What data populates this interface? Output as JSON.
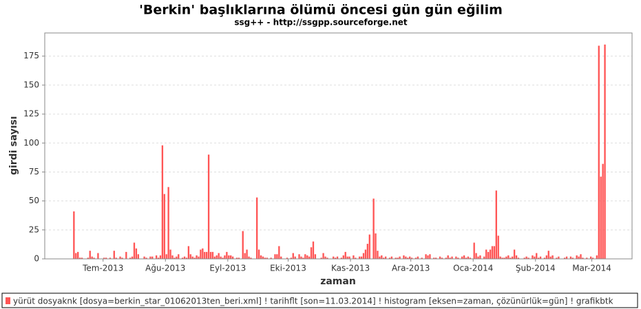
{
  "chart_data": {
    "type": "bar",
    "title": "'Berkin' başlıklarına ölümü öncesi gün gün eğilim",
    "subtitle": "ssg++ - http://ssgpp.sourceforge.net",
    "x_label": "zaman",
    "y_label": "girdi sayısı",
    "categories": [
      null,
      null,
      null,
      null,
      null,
      null,
      null,
      null,
      null,
      null,
      null,
      null,
      null,
      null,
      null,
      null,
      null,
      null,
      null,
      null,
      null,
      null,
      null,
      null,
      null,
      null,
      null,
      null,
      null,
      "Tem-2013",
      null,
      null,
      null,
      null,
      null,
      null,
      null,
      null,
      null,
      null,
      null,
      null,
      null,
      null,
      null,
      null,
      null,
      null,
      null,
      null,
      null,
      null,
      null,
      null,
      null,
      null,
      null,
      null,
      null,
      null,
      "Ağu-2013",
      null,
      null,
      null,
      null,
      null,
      null,
      null,
      null,
      null,
      null,
      null,
      null,
      null,
      null,
      null,
      null,
      null,
      null,
      null,
      null,
      null,
      null,
      null,
      null,
      null,
      null,
      null,
      null,
      null,
      null,
      "Eyl-2013",
      null,
      null,
      null,
      null,
      null,
      null,
      null,
      null,
      null,
      null,
      null,
      null,
      null,
      null,
      null,
      null,
      null,
      null,
      null,
      null,
      null,
      null,
      null,
      null,
      null,
      null,
      null,
      null,
      null,
      "Eki-2013",
      null,
      null,
      null,
      null,
      null,
      null,
      null,
      null,
      null,
      null,
      null,
      null,
      null,
      null,
      null,
      null,
      null,
      null,
      null,
      null,
      null,
      null,
      null,
      null,
      null,
      null,
      null,
      null,
      null,
      null,
      "Kas-2013",
      null,
      null,
      null,
      null,
      null,
      null,
      null,
      null,
      null,
      null,
      null,
      null,
      null,
      null,
      null,
      null,
      null,
      null,
      null,
      null,
      null,
      null,
      null,
      null,
      null,
      null,
      null,
      null,
      null,
      "Ara-2013",
      null,
      null,
      null,
      null,
      null,
      null,
      null,
      null,
      null,
      null,
      null,
      null,
      null,
      null,
      null,
      null,
      null,
      null,
      null,
      null,
      null,
      null,
      null,
      null,
      null,
      null,
      null,
      null,
      null,
      null,
      "Oca-2014",
      null,
      null,
      null,
      null,
      null,
      null,
      null,
      null,
      null,
      null,
      null,
      null,
      null,
      null,
      null,
      null,
      null,
      null,
      null,
      null,
      null,
      null,
      null,
      null,
      null,
      null,
      null,
      null,
      null,
      null,
      "Şub-2014",
      null,
      null,
      null,
      null,
      null,
      null,
      null,
      null,
      null,
      null,
      null,
      null,
      null,
      null,
      null,
      null,
      null,
      null,
      null,
      null,
      null,
      null,
      null,
      null,
      null,
      null,
      null,
      "Mar-2014",
      null,
      null,
      null,
      null,
      null,
      null,
      null,
      null,
      null,
      null,
      null,
      null,
      null,
      null,
      null,
      null,
      null,
      null,
      null
    ],
    "series": [
      {
        "name": "yürüt dosyaknk [dosya=berkin_star_01062013ten_beri.xml] ! tarihflt [son=11.03.2014] ! histogram [eksen=zaman, çözünürlük=gün] ! grafikbtk",
        "color": "#ff5555",
        "values": [
          0,
          0,
          0,
          0,
          0,
          0,
          0,
          0,
          0,
          0,
          0,
          0,
          0,
          0,
          41,
          5,
          6,
          1,
          1,
          0,
          0,
          1,
          7,
          2,
          1,
          0,
          5,
          0,
          0,
          1,
          1,
          0,
          1,
          0,
          7,
          1,
          0,
          2,
          1,
          0,
          6,
          0,
          1,
          2,
          14,
          9,
          4,
          0,
          0,
          2,
          1,
          0,
          2,
          2,
          0,
          3,
          1,
          3,
          98,
          56,
          4,
          62,
          8,
          3,
          1,
          2,
          4,
          0,
          1,
          2,
          1,
          11,
          4,
          2,
          1,
          3,
          2,
          8,
          9,
          6,
          6,
          90,
          6,
          6,
          2,
          3,
          5,
          2,
          1,
          3,
          6,
          3,
          3,
          2,
          0,
          1,
          1,
          0,
          24,
          5,
          8,
          2,
          1,
          0,
          0,
          53,
          8,
          3,
          2,
          1,
          1,
          0,
          1,
          0,
          4,
          4,
          11,
          2,
          0,
          0,
          1,
          0,
          1,
          5,
          2,
          0,
          4,
          2,
          1,
          4,
          3,
          2,
          10,
          15,
          4,
          0,
          0,
          1,
          5,
          2,
          1,
          0,
          0,
          2,
          1,
          2,
          0,
          1,
          3,
          6,
          2,
          2,
          0,
          3,
          1,
          0,
          2,
          2,
          5,
          8,
          13,
          21,
          0,
          52,
          22,
          7,
          2,
          3,
          1,
          2,
          0,
          1,
          2,
          0,
          1,
          1,
          2,
          0,
          3,
          2,
          1,
          2,
          1,
          0,
          1,
          2,
          0,
          1,
          0,
          4,
          3,
          4,
          0,
          1,
          1,
          0,
          2,
          1,
          0,
          1,
          3,
          1,
          2,
          0,
          2,
          1,
          0,
          2,
          3,
          1,
          2,
          1,
          0,
          14,
          5,
          2,
          3,
          0,
          2,
          8,
          6,
          8,
          11,
          11,
          59,
          20,
          2,
          1,
          1,
          2,
          3,
          1,
          2,
          8,
          3,
          1,
          0,
          0,
          1,
          2,
          1,
          0,
          3,
          2,
          5,
          1,
          2,
          0,
          1,
          3,
          7,
          2,
          3,
          0,
          1,
          2,
          0,
          0,
          1,
          2,
          0,
          2,
          1,
          0,
          3,
          2,
          4,
          1,
          0,
          1,
          0,
          2,
          1,
          0,
          3,
          184,
          71,
          82,
          185,
          0,
          0,
          0,
          0,
          0,
          0,
          0,
          0,
          0,
          0,
          0,
          0,
          0
        ]
      }
    ],
    "ylim": [
      0,
      195
    ],
    "yticks": [
      0,
      25,
      50,
      75,
      100,
      125,
      150,
      175
    ],
    "grid": true
  }
}
